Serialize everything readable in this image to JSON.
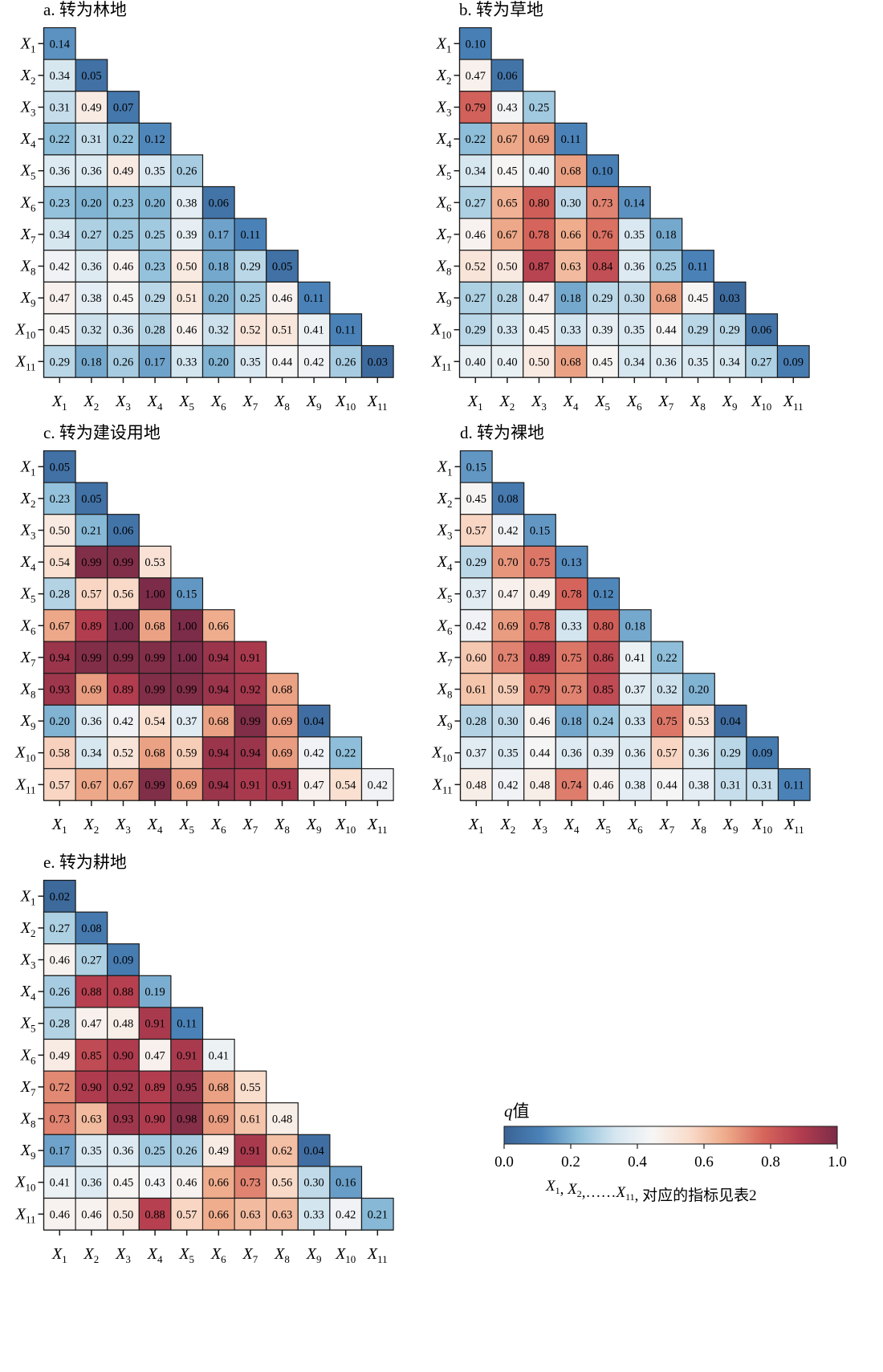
{
  "chart_data": {
    "type": "heatmap",
    "description": "Lower-triangular interaction detector q-value heatmaps",
    "variables": [
      "X1",
      "X2",
      "X3",
      "X4",
      "X5",
      "X6",
      "X7",
      "X8",
      "X9",
      "X10",
      "X11"
    ],
    "variable_labels": [
      {
        "base": "X",
        "sub": "1"
      },
      {
        "base": "X",
        "sub": "2"
      },
      {
        "base": "X",
        "sub": "3"
      },
      {
        "base": "X",
        "sub": "4"
      },
      {
        "base": "X",
        "sub": "5"
      },
      {
        "base": "X",
        "sub": "6"
      },
      {
        "base": "X",
        "sub": "7"
      },
      {
        "base": "X",
        "sub": "8"
      },
      {
        "base": "X",
        "sub": "9"
      },
      {
        "base": "X",
        "sub": "10"
      },
      {
        "base": "X",
        "sub": "11"
      }
    ],
    "panels": [
      {
        "id": "a",
        "title": "a. 转为林地",
        "matrix": [
          [
            0.14
          ],
          [
            0.34,
            0.05
          ],
          [
            0.31,
            0.49,
            0.07
          ],
          [
            0.22,
            0.31,
            0.22,
            0.12
          ],
          [
            0.36,
            0.36,
            0.49,
            0.35,
            0.26
          ],
          [
            0.23,
            0.2,
            0.23,
            0.2,
            0.38,
            0.06
          ],
          [
            0.34,
            0.27,
            0.25,
            0.25,
            0.39,
            0.17,
            0.11
          ],
          [
            0.42,
            0.36,
            0.46,
            0.23,
            0.5,
            0.18,
            0.29,
            0.05
          ],
          [
            0.47,
            0.38,
            0.45,
            0.29,
            0.51,
            0.2,
            0.25,
            0.46,
            0.11
          ],
          [
            0.45,
            0.32,
            0.36,
            0.28,
            0.46,
            0.32,
            0.52,
            0.51,
            0.41,
            0.11
          ],
          [
            0.29,
            0.18,
            0.26,
            0.17,
            0.33,
            0.2,
            0.35,
            0.44,
            0.42,
            0.26,
            0.03
          ]
        ]
      },
      {
        "id": "b",
        "title": "b. 转为草地",
        "matrix": [
          [
            0.1
          ],
          [
            0.47,
            0.06
          ],
          [
            0.79,
            0.43,
            0.25
          ],
          [
            0.22,
            0.67,
            0.69,
            0.11
          ],
          [
            0.34,
            0.45,
            0.4,
            0.68,
            0.1
          ],
          [
            0.27,
            0.65,
            0.8,
            0.3,
            0.73,
            0.14
          ],
          [
            0.46,
            0.67,
            0.78,
            0.66,
            0.76,
            0.35,
            0.18
          ],
          [
            0.52,
            0.5,
            0.87,
            0.63,
            0.84,
            0.36,
            0.25,
            0.11
          ],
          [
            0.27,
            0.28,
            0.47,
            0.18,
            0.29,
            0.3,
            0.68,
            0.45,
            0.03
          ],
          [
            0.29,
            0.33,
            0.45,
            0.33,
            0.39,
            0.35,
            0.44,
            0.29,
            0.29,
            0.06
          ],
          [
            0.4,
            0.4,
            0.5,
            0.68,
            0.45,
            0.34,
            0.36,
            0.35,
            0.34,
            0.27,
            0.09
          ]
        ]
      },
      {
        "id": "c",
        "title": "c. 转为建设用地",
        "matrix": [
          [
            0.05
          ],
          [
            0.23,
            0.05
          ],
          [
            0.5,
            0.21,
            0.06
          ],
          [
            0.54,
            0.99,
            0.99,
            0.53
          ],
          [
            0.28,
            0.57,
            0.56,
            1.0,
            0.15
          ],
          [
            0.67,
            0.89,
            1.0,
            0.68,
            1.0,
            0.66
          ],
          [
            0.94,
            0.99,
            0.99,
            0.99,
            1.0,
            0.94,
            0.91
          ],
          [
            0.93,
            0.69,
            0.89,
            0.99,
            0.99,
            0.94,
            0.92,
            0.68
          ],
          [
            0.2,
            0.36,
            0.42,
            0.54,
            0.37,
            0.68,
            0.99,
            0.69,
            0.04
          ],
          [
            0.58,
            0.34,
            0.52,
            0.68,
            0.59,
            0.94,
            0.94,
            0.69,
            0.42,
            0.22
          ],
          [
            0.57,
            0.67,
            0.67,
            0.99,
            0.69,
            0.94,
            0.91,
            0.91,
            0.47,
            0.54,
            0.42
          ]
        ]
      },
      {
        "id": "d",
        "title": "d. 转为裸地",
        "matrix": [
          [
            0.15
          ],
          [
            0.45,
            0.08
          ],
          [
            0.57,
            0.42,
            0.15
          ],
          [
            0.29,
            0.7,
            0.75,
            0.13
          ],
          [
            0.37,
            0.47,
            0.49,
            0.78,
            0.12
          ],
          [
            0.42,
            0.69,
            0.78,
            0.33,
            0.8,
            0.18
          ],
          [
            0.6,
            0.73,
            0.89,
            0.75,
            0.86,
            0.41,
            0.22
          ],
          [
            0.61,
            0.59,
            0.79,
            0.73,
            0.85,
            0.37,
            0.32,
            0.2
          ],
          [
            0.28,
            0.3,
            0.46,
            0.18,
            0.24,
            0.33,
            0.75,
            0.53,
            0.04
          ],
          [
            0.37,
            0.35,
            0.44,
            0.36,
            0.39,
            0.36,
            0.57,
            0.36,
            0.29,
            0.09
          ],
          [
            0.48,
            0.42,
            0.48,
            0.74,
            0.46,
            0.38,
            0.44,
            0.38,
            0.31,
            0.31,
            0.11
          ]
        ]
      },
      {
        "id": "e",
        "title": "e. 转为耕地",
        "matrix": [
          [
            0.02
          ],
          [
            0.27,
            0.08
          ],
          [
            0.46,
            0.27,
            0.09
          ],
          [
            0.26,
            0.88,
            0.88,
            0.19
          ],
          [
            0.28,
            0.47,
            0.48,
            0.91,
            0.11
          ],
          [
            0.49,
            0.85,
            0.9,
            0.47,
            0.91,
            0.41
          ],
          [
            0.72,
            0.9,
            0.92,
            0.89,
            0.95,
            0.68,
            0.55
          ],
          [
            0.73,
            0.63,
            0.93,
            0.9,
            0.98,
            0.69,
            0.61,
            0.48
          ],
          [
            0.17,
            0.35,
            0.36,
            0.25,
            0.26,
            0.49,
            0.91,
            0.62,
            0.04
          ],
          [
            0.41,
            0.36,
            0.45,
            0.43,
            0.46,
            0.66,
            0.73,
            0.56,
            0.3,
            0.16
          ],
          [
            0.46,
            0.46,
            0.5,
            0.88,
            0.57,
            0.66,
            0.63,
            0.63,
            0.33,
            0.42,
            0.21
          ]
        ]
      }
    ],
    "colorbar": {
      "title_italic": "q",
      "title_rest": "值",
      "range": [
        0.0,
        1.0
      ],
      "ticks": [
        "0.0",
        "0.2",
        "0.4",
        "0.6",
        "0.8",
        "1.0"
      ],
      "colormap": "RdBu_r",
      "colors": [
        "#3a6395",
        "#4a82b8",
        "#8fbfda",
        "#d5e6f0",
        "#f7f6f6",
        "#f9dccb",
        "#eeaa8a",
        "#d6665c",
        "#b33d4f",
        "#7c2c48"
      ],
      "note": {
        "parts": [
          {
            "base": "X",
            "sub": "1"
          },
          {
            "text": ", "
          },
          {
            "base": "X",
            "sub": "2"
          },
          {
            "text": ",……"
          },
          {
            "base": "X",
            "sub": "11"
          },
          {
            "text": ", 对应的指标见表2"
          }
        ]
      }
    },
    "value_format": "2 decimals",
    "grid": false
  }
}
